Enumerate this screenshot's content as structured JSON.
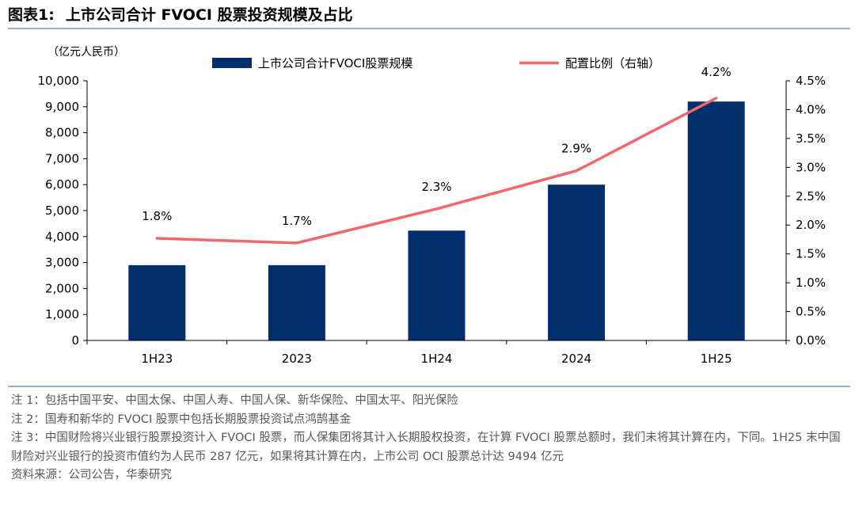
{
  "figure": {
    "label": "图表1:",
    "title": "上市公司合计 FVOCI 股票投资规模及占比"
  },
  "chart_data": {
    "type": "bar+line",
    "categories": [
      "1H23",
      "2023",
      "1H24",
      "2024",
      "1H25"
    ],
    "unit_label": "（亿元人民币）",
    "series": [
      {
        "name": "上市公司合计FVOCI股票规模",
        "type": "bar",
        "axis": "left",
        "color": "#002F6C",
        "values": [
          2900,
          2900,
          4230,
          6000,
          9200
        ]
      },
      {
        "name": "配置比例（右轴）",
        "type": "line",
        "axis": "right",
        "color": "#F0686B",
        "values": [
          1.77,
          1.69,
          2.28,
          2.94,
          4.2
        ],
        "labels": [
          "1.8%",
          "1.7%",
          "2.3%",
          "2.9%",
          "4.2%"
        ]
      }
    ],
    "left_axis": {
      "ylim": [
        0,
        10000
      ],
      "ticks": [
        0,
        1000,
        2000,
        3000,
        4000,
        5000,
        6000,
        7000,
        8000,
        9000,
        10000
      ],
      "tick_labels": [
        "0",
        "1,000",
        "2,000",
        "3,000",
        "4,000",
        "5,000",
        "6,000",
        "7,000",
        "8,000",
        "9,000",
        "10,000"
      ]
    },
    "right_axis": {
      "ylim": [
        0,
        4.5
      ],
      "ticks": [
        0,
        0.5,
        1.0,
        1.5,
        2.0,
        2.5,
        3.0,
        3.5,
        4.0,
        4.5
      ],
      "tick_labels": [
        "0.0%",
        "0.5%",
        "1.0%",
        "1.5%",
        "2.0%",
        "2.5%",
        "3.0%",
        "3.5%",
        "4.0%",
        "4.5%"
      ]
    },
    "legend_position": "top",
    "grid": false
  },
  "notes": [
    "注 1：包括中国平安、中国太保、中国人寿、中国人保、新华保险、中国太平、阳光保险",
    "注 2：国寿和新华的 FVOCI 股票中包括长期股票投资试点鸿鹄基金",
    "注 3：中国财险将兴业银行股票投资计入 FVOCI 股票，而人保集团将其计入长期股权投资，在计算 FVOCI 股票总额时，我们未将其计算在内，下同。1H25 末中国财险对兴业银行的投资市值约为人民币 287 亿元，如果将其计算在内，上市公司 OCI 股票总计达 9494 亿元",
    "资料来源：公司公告，华泰研究"
  ]
}
